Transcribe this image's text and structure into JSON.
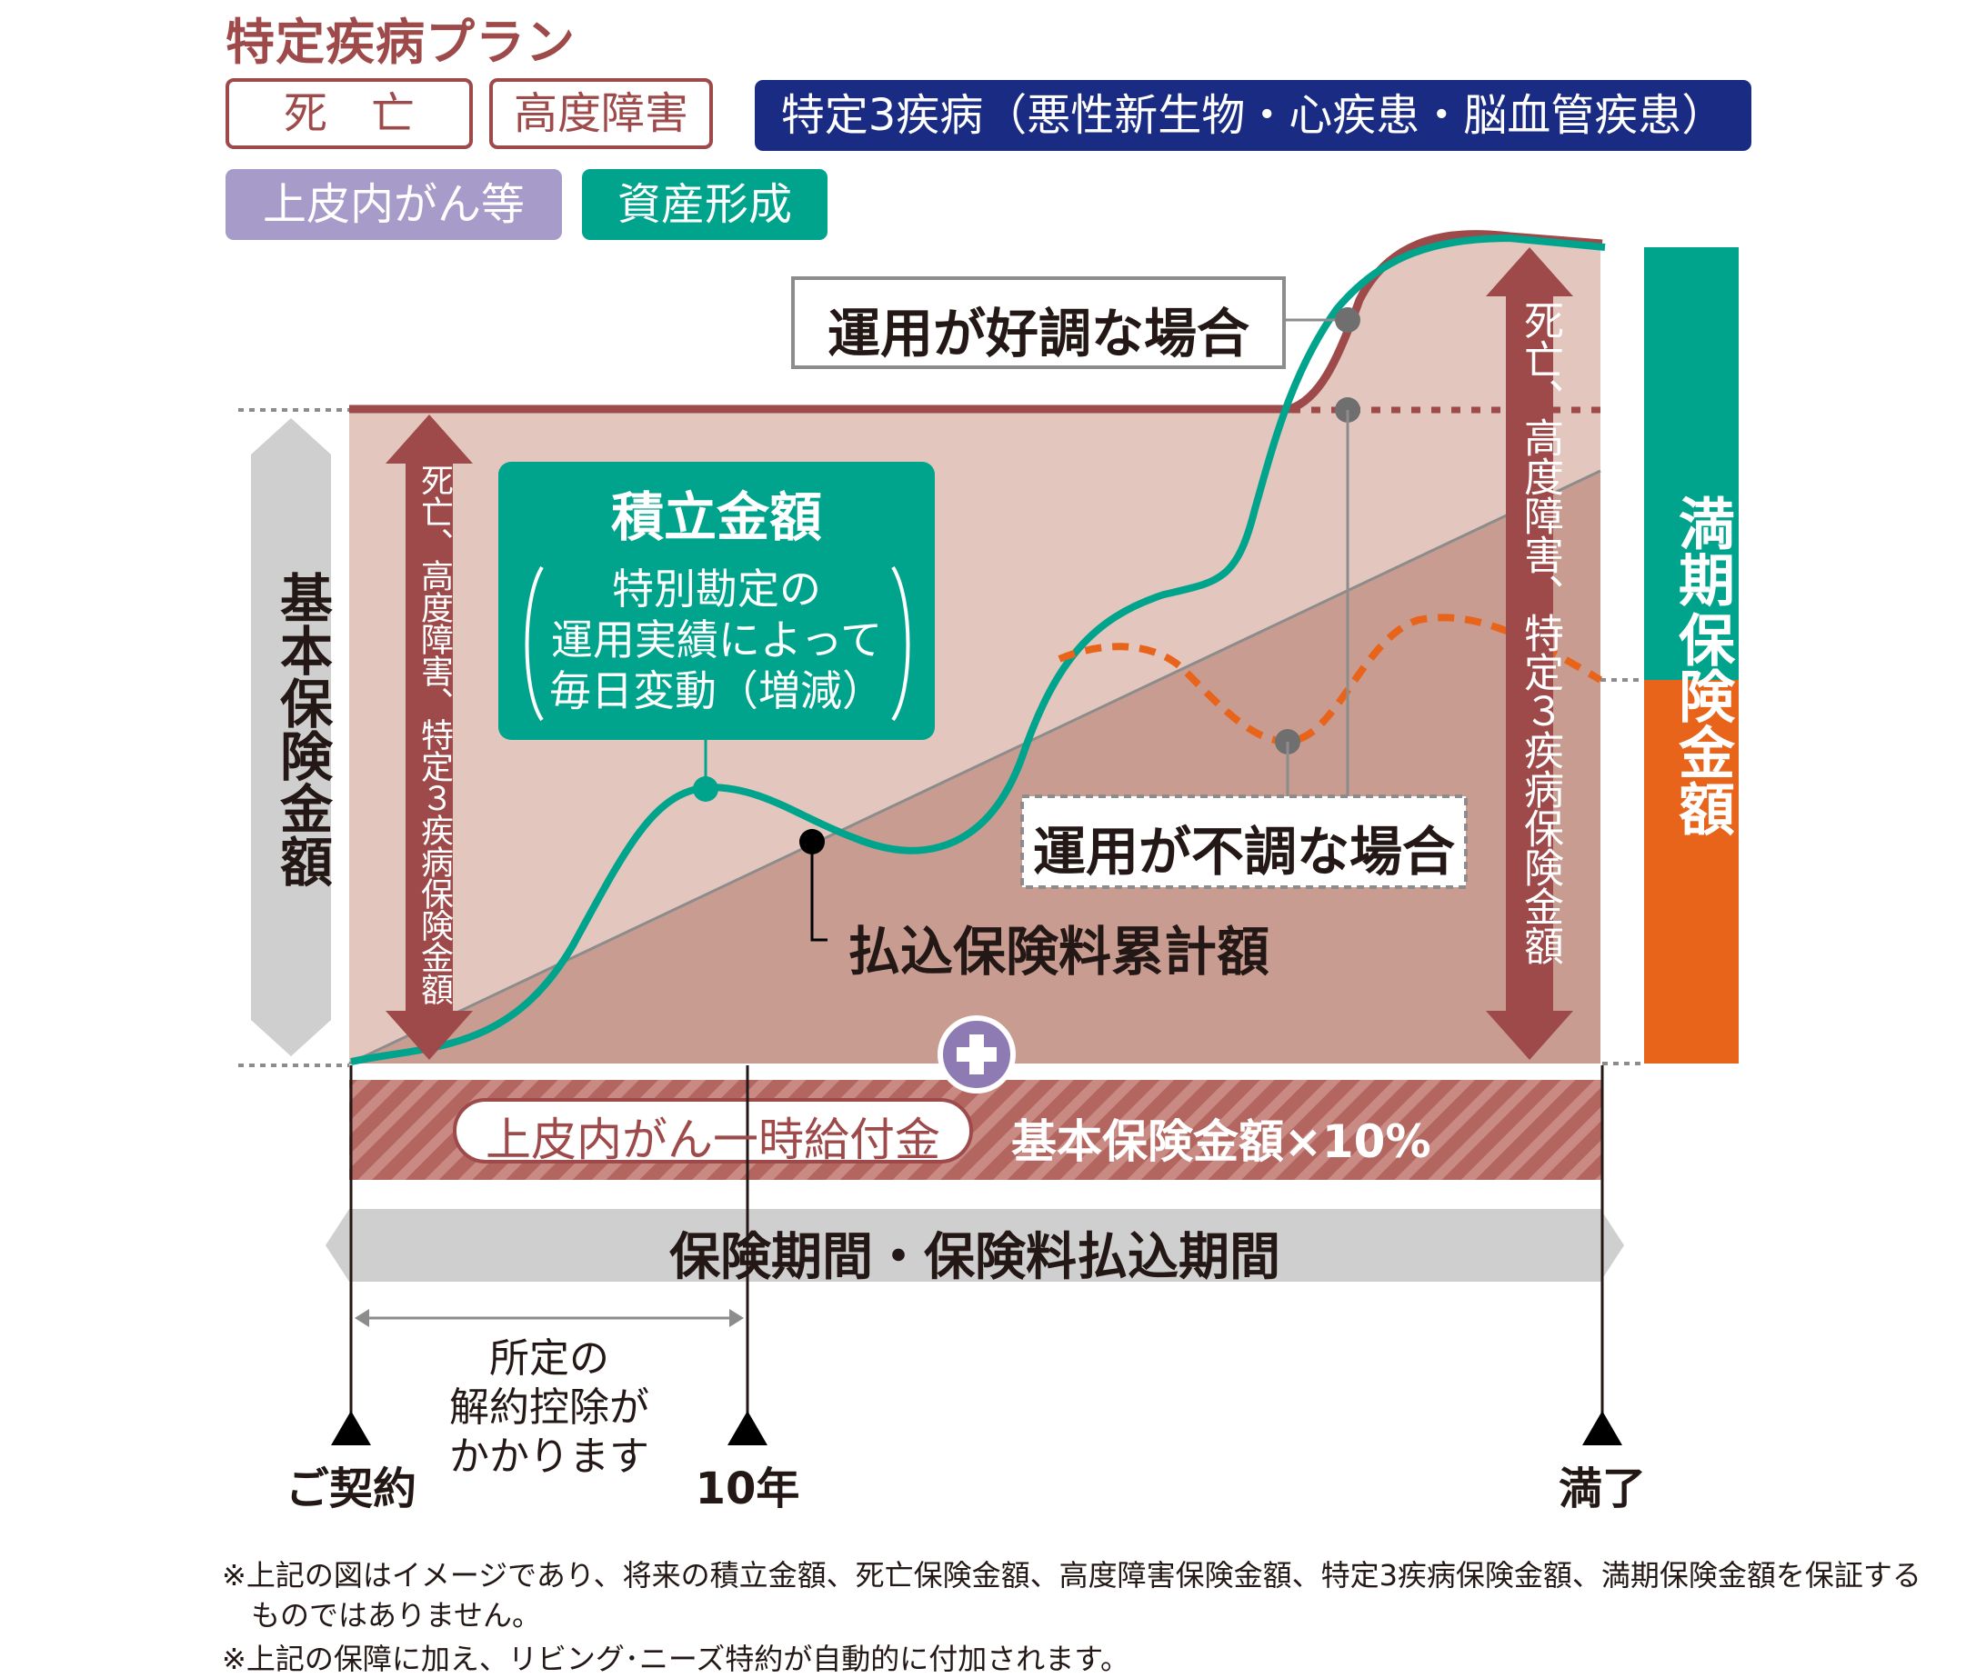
{
  "title": "特定疾病プラン",
  "tags": {
    "death": "死　亡",
    "disability": "高度障害",
    "three_diseases": "特定3疾病（悪性新生物・心疾患・脳血管疾患）",
    "in_situ_cancer": "上皮内がん等",
    "asset_formation": "資産形成"
  },
  "labels": {
    "basic_sum": "基本保険金額",
    "left_arrow": "死亡、高度障害、特定３疾病保険金額",
    "right_arrow": "死亡、高度障害、特定３疾病保険金額",
    "maturity_top": "満期",
    "maturity_bottom": "保険金額",
    "accumulation_title": "積立金額",
    "accumulation_line1": "特別勘定の",
    "accumulation_line2": "運用実績によって",
    "accumulation_line3": "毎日変動（増減）",
    "good_case": "運用が好調な場合",
    "bad_case": "運用が不調な場合",
    "premium_cumulative": "払込保険料累計額",
    "cancer_benefit": "上皮内がん一時給付金",
    "cancer_benefit_amount": "基本保険金額×10%",
    "period": "保険期間・保険料払込期間",
    "surrender_line1": "所定の",
    "surrender_line2": "解約控除が",
    "surrender_line3": "かかります"
  },
  "timeline": {
    "start": "ご契約",
    "year10": "10年",
    "end": "満了"
  },
  "notes": {
    "note1_line1": "※上記の図はイメージであり、将来の積立金額、死亡保険金額、高度障害保険金額、特定3疾病保険金額、満期保険金額を保証する",
    "note1_line2": "ものではありません。",
    "note2": "※上記の保障に加え、リビング･ニーズ特約が自動的に付加されます。"
  },
  "colors": {
    "brand_red": "#9e4a4a",
    "navy": "#1a2b84",
    "purple": "#a79bc9",
    "green": "#00a48d",
    "orange": "#e8641b",
    "light_area": "#e3c6bd",
    "dark_area": "#c99c91",
    "gray": "#cfcfcf"
  }
}
